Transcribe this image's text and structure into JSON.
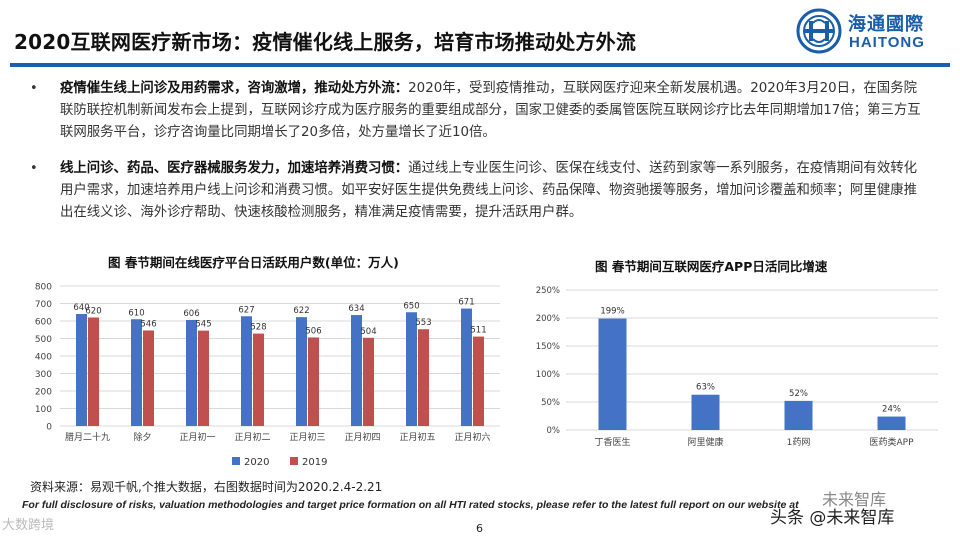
{
  "header": {
    "title": "2020互联网医疗新市场：疫情催化线上服务，培育市场推动处方外流",
    "logo": {
      "cn": "海通國際",
      "en": "HAITONG",
      "primary_color": "#1a5ea8"
    }
  },
  "bullets": [
    {
      "marker": "•",
      "lead": "疫情催生线上问诊及用药需求，咨询激增，推动处方外流：",
      "text": "2020年，受到疫情推动，互联网医疗迎来全新发展机遇。2020年3月20日，在国务院联防联控机制新闻发布会上提到，互联网诊疗成为医疗服务的重要组成部分，国家卫健委的委属管医院互联网诊疗比去年同期增加17倍；第三方互联网服务平台，诊疗咨询量比同期增长了20多倍，处方量增长了近10倍。"
    },
    {
      "marker": "•",
      "lead": "线上问诊、药品、医疗器械服务发力，加速培养消费习惯：",
      "text": "通过线上专业医生问诊、医保在线支付、送药到家等一系列服务，在疫情期间有效转化用户需求，加速培养用户线上问诊和消费习惯。如平安好医生提供免费线上问诊、药品保障、物资驰援等服务，增加问诊覆盖和频率；阿里健康推出在线义诊、海外诊疗帮助、快速核酸检测服务，精准满足疫情需要，提升活跃用户群。"
    }
  ],
  "chart_data": [
    {
      "type": "bar",
      "title": "图 春节期间在线医疗平台日活跃用户数(单位：万人)",
      "categories": [
        "腊月二十九",
        "除夕",
        "正月初一",
        "正月初二",
        "正月初三",
        "正月初四",
        "正月初五",
        "正月初六"
      ],
      "series": [
        {
          "name": "2020",
          "color": "#4472c4",
          "values": [
            640,
            610,
            606,
            627,
            622,
            634,
            650,
            671
          ]
        },
        {
          "name": "2019",
          "color": "#c0504d",
          "values": [
            620,
            546,
            545,
            528,
            506,
            504,
            553,
            511
          ]
        }
      ],
      "ylim": [
        0,
        800
      ],
      "yticks": [
        "0",
        "100",
        "200",
        "300",
        "400",
        "500",
        "600",
        "700",
        "800"
      ],
      "grid": true,
      "legend": "bottom"
    },
    {
      "type": "bar",
      "title": "图  春节期间互联网医疗APP日活同比增速",
      "categories": [
        "丁香医生",
        "阿里健康",
        "1药网",
        "医药类APP"
      ],
      "values": [
        199,
        63,
        52,
        24
      ],
      "value_labels": [
        "199%",
        "63%",
        "52%",
        "24%"
      ],
      "color": "#4472c4",
      "ylim": [
        0,
        250
      ],
      "yticks": [
        "0%",
        "50%",
        "100%",
        "150%",
        "200%",
        "250%"
      ],
      "grid": true
    }
  ],
  "footer": {
    "source": "资料来源：易观千帆,个推大数据，右图数据时间为2020.2.4-2.21",
    "disclaimer": "For full disclosure of risks, valuation methodologies and target price formation on all HTI rated stocks, please refer to the latest full report on our website at",
    "page_number": "6"
  },
  "watermarks": {
    "left": "大数跨境",
    "right_top": "未来智库",
    "right": "头条 @未来智库"
  }
}
